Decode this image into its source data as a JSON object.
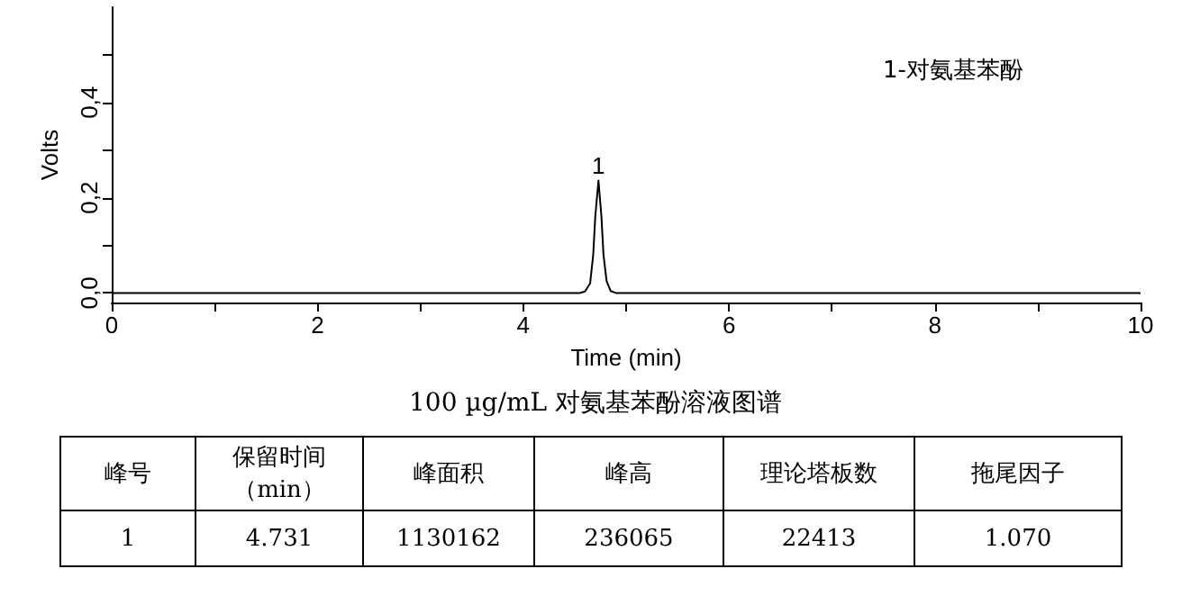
{
  "chart_data": {
    "type": "line",
    "title": "100 µg/mL 对氨基苯酚溶液图谱",
    "xlabel": "Time (min)",
    "ylabel": "Volts",
    "x": [
      0,
      4.55,
      4.6,
      4.65,
      4.68,
      4.7,
      4.731,
      4.76,
      4.78,
      4.81,
      4.85,
      4.9,
      10
    ],
    "series": [
      {
        "color": "#000000",
        "values": [
          0,
          0,
          0.003,
          0.02,
          0.08,
          0.16,
          0.236,
          0.16,
          0.08,
          0.025,
          0.004,
          0,
          0
        ]
      }
    ],
    "xlim": [
      0,
      10
    ],
    "xticks": [
      0,
      {
        "value": 1,
        "label": null
      },
      2,
      {
        "value": 3,
        "label": null
      },
      4,
      {
        "value": 5,
        "label": null
      },
      6,
      {
        "value": 7,
        "label": null
      },
      8,
      {
        "value": 9,
        "label": null
      },
      10
    ],
    "ylim": [
      -0.02,
      0.6
    ],
    "yticks": [
      {
        "value": 0,
        "label": "0,0"
      },
      {
        "value": 0.1,
        "label": null
      },
      {
        "value": 0.2,
        "label": "0,2"
      },
      {
        "value": 0.3,
        "label": null
      },
      {
        "value": 0.4,
        "label": "0,4"
      },
      {
        "value": 0.5,
        "label": null
      }
    ],
    "grid": false,
    "marker": "none",
    "line_style": "solid",
    "annotations": [
      "1-对氨基苯酚",
      {
        "text": "1",
        "x": 4.731,
        "y": 0.236
      },
      "峰号",
      "保留时间（min）",
      "峰面积",
      "峰高",
      "理论塔板数",
      "拖尾因子",
      "1",
      "4.731",
      "1130162",
      "236065",
      "22413",
      "1.070"
    ]
  }
}
